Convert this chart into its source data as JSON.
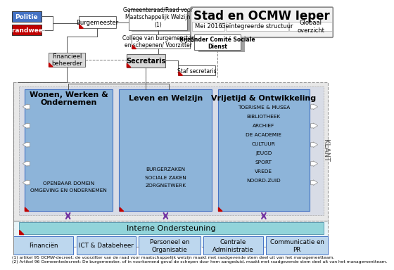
{
  "title": "Stad en OCMW Ieper",
  "subtitle_date": "Mei 2016",
  "subtitle_type": "Geïntegreerde structuur",
  "subtitle_global": "Globaal\noverzicht",
  "footnote1": "(1) artikel 95 OCMW-decreet: de voorzitter van de raad voor maatschappelijk welzijn maakt met raadgevende stem deel uit van het managementteam.",
  "footnote2": "(2) Artikel 96 Gemeentedecreet: De burgemeester, of in voorkomend geval de schepen door hem aangeduid, maakt met raadgevende stem deel uit van het managementteam.",
  "klant_label": "KLANT",
  "dept_main": [
    "Wonen, Werken &\nOndernemen",
    "Leven en Welzijn",
    "Vrijetijd & Ontwikkeling"
  ],
  "sub_wwo": [
    "OPENBAAR DOMEIN",
    "OMGEVING EN ONDERNEMEN"
  ],
  "sub_lw": [
    "BURGERZAKEN",
    "SOCIALE ZAKEN",
    "ZORGNETWERK"
  ],
  "sub_vdo": [
    "TOERISME & MUSEA",
    "BIBLIOTHEEK",
    "ARCHIEF",
    "DE ACADEMIE",
    "CULTUUR",
    "JEUGD",
    "SPORT",
    "VREDE",
    "NOORD-ZUID"
  ],
  "interne": "Interne Ondersteuning",
  "bottom": [
    "Financiën",
    "ICT & Databeheer",
    "Personeel en\nOrganisatie",
    "Centrale\nAdministratie",
    "Communicatie en\nPR"
  ],
  "col_white": "#ffffff",
  "col_blue_box": "#4472c4",
  "col_red_box": "#c00000",
  "col_gray_box": "#bfbfbf",
  "col_gray_light": "#d9d9d9",
  "col_dept_blue": "#7bafd4",
  "col_dept_blue_dark": "#5b9bd5",
  "col_outer_gray": "#d0d0d0",
  "col_inner_gray": "#c8ccd4",
  "col_interne": "#92d4da",
  "col_bottom_blue": "#bdd7ee",
  "col_edge_gray": "#808080",
  "col_edge_blue": "#2f5496",
  "col_title_bg": "#f2f2f2",
  "col_shadow": "#a0a0a0"
}
